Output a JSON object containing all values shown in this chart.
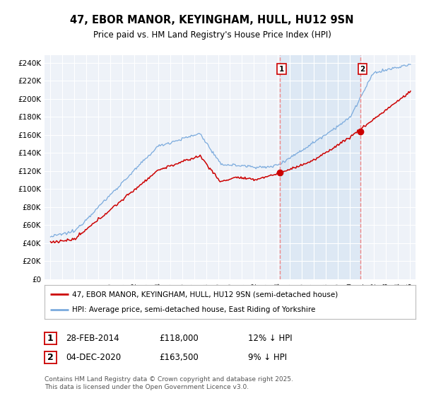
{
  "title": "47, EBOR MANOR, KEYINGHAM, HULL, HU12 9SN",
  "subtitle": "Price paid vs. HM Land Registry's House Price Index (HPI)",
  "red_label": "47, EBOR MANOR, KEYINGHAM, HULL, HU12 9SN (semi-detached house)",
  "blue_label": "HPI: Average price, semi-detached house, East Riding of Yorkshire",
  "transaction1": {
    "date": "28-FEB-2014",
    "price": 118000,
    "note": "12% ↓ HPI",
    "label": "1"
  },
  "transaction2": {
    "date": "04-DEC-2020",
    "price": 163500,
    "note": "9% ↓ HPI",
    "label": "2"
  },
  "vline1_x": 2014.17,
  "vline2_x": 2020.92,
  "marker1_x": 2014.17,
  "marker1_y": 118000,
  "marker2_x": 2020.92,
  "marker2_y": 163500,
  "ylim": [
    0,
    248000
  ],
  "xlim": [
    1994.5,
    2025.5
  ],
  "background_color": "#ffffff",
  "plot_bg_color": "#eef2f8",
  "grid_color": "#ffffff",
  "red_line_color": "#cc0000",
  "blue_line_color": "#7aaadd",
  "vline_color": "#ee8888",
  "marker_color": "#cc0000",
  "shade_color": "#dde8f4",
  "footnote": "Contains HM Land Registry data © Crown copyright and database right 2025.\nThis data is licensed under the Open Government Licence v3.0."
}
